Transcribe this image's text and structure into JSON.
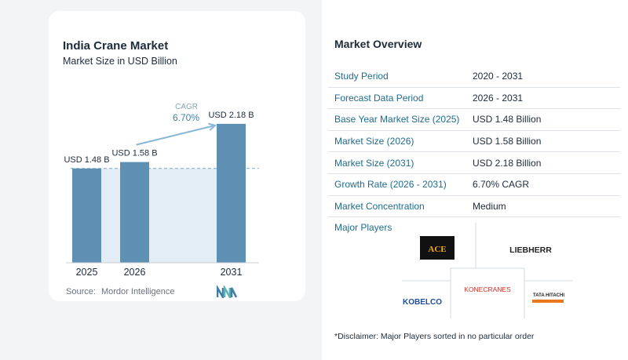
{
  "chart_data": {
    "type": "bar",
    "title": "India Crane Market",
    "subtitle": "Market Size in USD Billion",
    "categories": [
      "2025",
      "2026",
      "2031"
    ],
    "values": [
      1.48,
      1.58,
      2.18
    ],
    "data_labels": [
      "USD 1.48 B",
      "USD 1.58 B",
      "USD 2.18 B"
    ],
    "ylim": [
      0,
      2.4
    ],
    "reference_line_value": 1.48,
    "cagr_label": "CAGR",
    "cagr_value": "6.70%",
    "grid": false,
    "bar_color": "#5e90b4",
    "line_color": "#8ab7d6"
  },
  "source": {
    "label": "Source:",
    "name": "Mordor Intelligence"
  },
  "overview": {
    "title": "Market Overview",
    "rows": [
      {
        "label": "Study Period",
        "value": "2020 - 2031"
      },
      {
        "label": "Forecast Data Period",
        "value": "2026 - 2031"
      },
      {
        "label": "Base Year Market Size (2025)",
        "value": "USD 1.48 Billion"
      },
      {
        "label": "Market Size (2026)",
        "value": "USD 1.58 Billion"
      },
      {
        "label": "Market Size (2031)",
        "value": "USD 2.18 Billion"
      },
      {
        "label": "Growth Rate (2026 - 2031)",
        "value": "6.70% CAGR"
      },
      {
        "label": "Market Concentration",
        "value": "Medium"
      }
    ],
    "major_players_label": "Major Players",
    "players": [
      "ACE",
      "LIEBHERR",
      "KONECRANES",
      "KOBELCO",
      "TATA HITACHI"
    ],
    "disclaimer": "*Disclaimer: Major Players sorted in no particular order"
  },
  "colors": {
    "accent": "#1f6b8c",
    "bar": "#5e90b4",
    "highlight_band": "#e3edf5"
  }
}
